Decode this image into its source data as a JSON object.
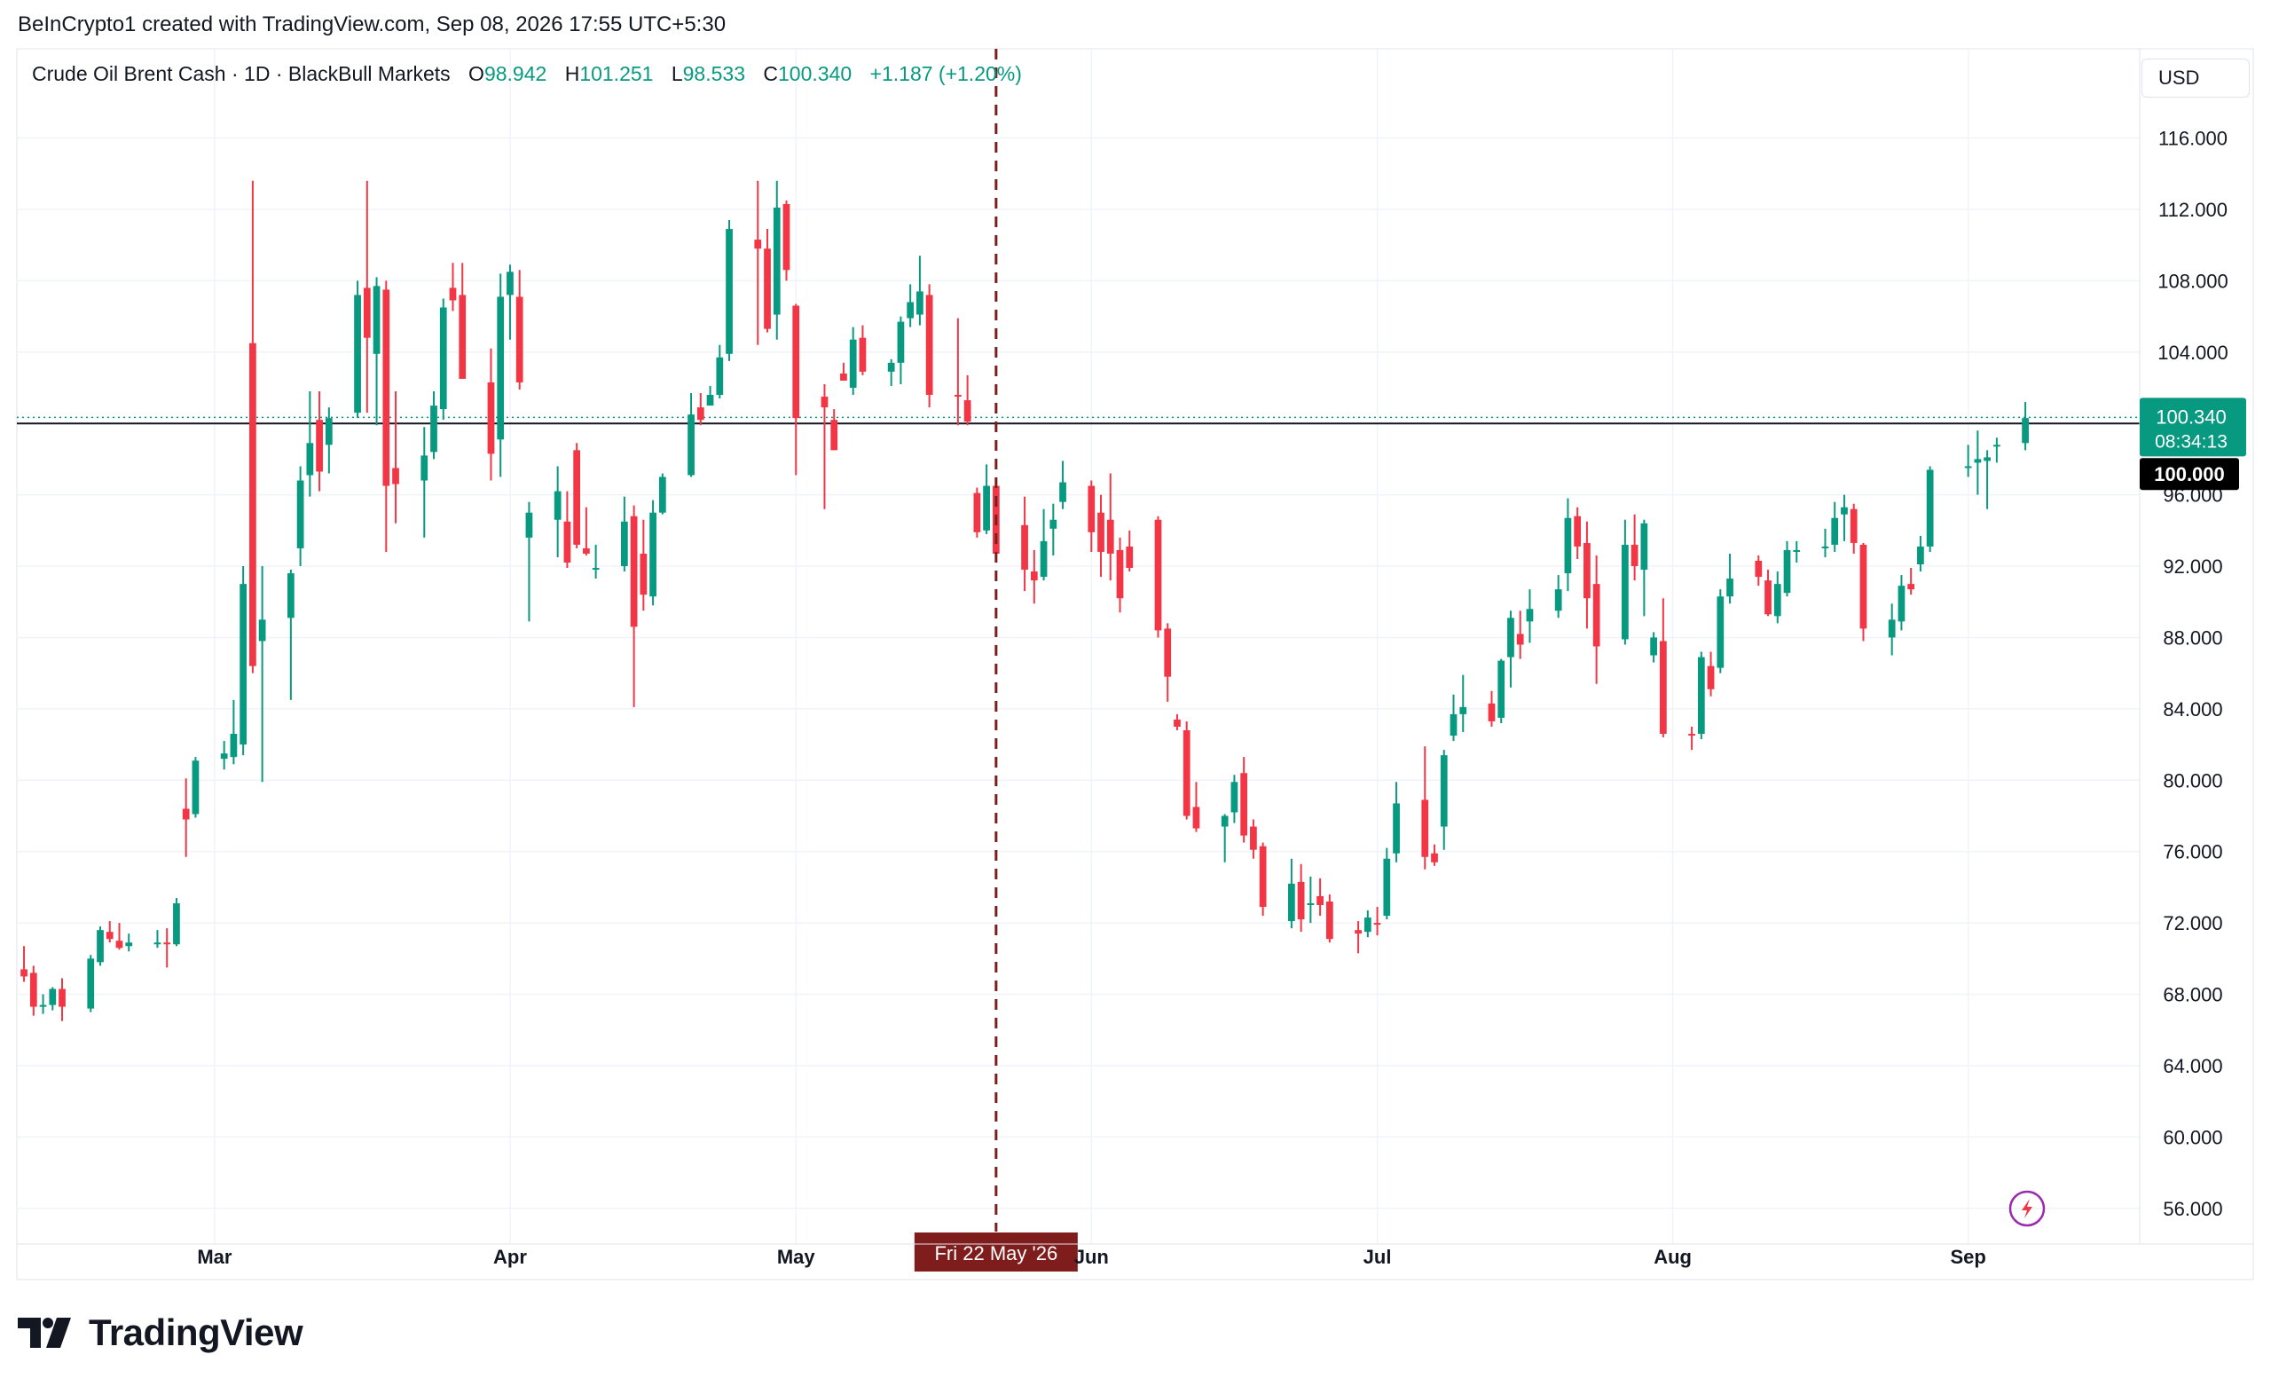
{
  "header": {
    "credit": "BeInCrypto1 created with TradingView.com, Sep 08, 2026 17:55 UTC+5:30"
  },
  "legend": {
    "symbol": "Crude Oil Brent Cash · 1D · BlackBull Markets",
    "o_label": "O",
    "o_value": "98.942",
    "h_label": "H",
    "h_value": "101.251",
    "l_label": "L",
    "l_value": "98.533",
    "c_label": "C",
    "c_value": "100.340",
    "change": "+1.187 (+1.20%)"
  },
  "toolbar": {
    "currency": "USD"
  },
  "brand": {
    "name": "TradingView",
    "logo_icon": "tradingview-logo-icon"
  },
  "icons": {
    "lightning": "lightning-icon"
  },
  "colors": {
    "up": "#089981",
    "down": "#f23645",
    "marker": "#7f1d1d",
    "price_label_bg": "#089981",
    "level_label_bg": "#000000",
    "grid": "#f0f3fa"
  },
  "chart_data": {
    "type": "candlestick",
    "title": "Crude Oil Brent Cash · 1D · BlackBull Markets",
    "ylim": [
      54,
      121
    ],
    "y_ticks": [
      "116.000",
      "112.000",
      "108.000",
      "104.000",
      "96.000",
      "92.000",
      "88.000",
      "84.000",
      "80.000",
      "76.000",
      "72.000",
      "68.000",
      "64.000",
      "60.000",
      "56.000"
    ],
    "y_tick_values": [
      116,
      112,
      108,
      104,
      96,
      92,
      88,
      84,
      80,
      76,
      72,
      68,
      64,
      60,
      56
    ],
    "x_ticks": [
      "Mar",
      "Apr",
      "May",
      "Jun",
      "Jul",
      "Aug",
      "Sep"
    ],
    "x_tick_dates": [
      "2026-03-01",
      "2026-04-01",
      "2026-05-01",
      "2026-06-01",
      "2026-07-01",
      "2026-08-01",
      "2026-09-01"
    ],
    "grid": true,
    "current_price": {
      "value": 100.34,
      "label": "100.340",
      "countdown": "08:34:13"
    },
    "horizontal_level": {
      "value": 100,
      "label": "100.000"
    },
    "vertical_marker": {
      "date": "2026-05-22",
      "label": "Fri 22 May '26"
    },
    "candles": [
      {
        "t": "2026-02-09",
        "o": 69.4,
        "h": 70.7,
        "l": 68.7,
        "c": 69.0
      },
      {
        "t": "2026-02-10",
        "o": 69.2,
        "h": 69.6,
        "l": 66.8,
        "c": 67.3
      },
      {
        "t": "2026-02-11",
        "o": 67.3,
        "h": 68.0,
        "l": 66.9,
        "c": 67.4
      },
      {
        "t": "2026-02-12",
        "o": 67.4,
        "h": 68.4,
        "l": 67.1,
        "c": 68.3
      },
      {
        "t": "2026-02-13",
        "o": 68.3,
        "h": 68.9,
        "l": 66.5,
        "c": 67.3
      },
      {
        "t": "2026-02-16",
        "o": 67.2,
        "h": 70.2,
        "l": 67.0,
        "c": 70.0
      },
      {
        "t": "2026-02-17",
        "o": 69.8,
        "h": 71.8,
        "l": 69.6,
        "c": 71.6
      },
      {
        "t": "2026-02-18",
        "o": 71.5,
        "h": 72.1,
        "l": 70.9,
        "c": 71.1
      },
      {
        "t": "2026-02-19",
        "o": 71.0,
        "h": 72.0,
        "l": 70.5,
        "c": 70.6
      },
      {
        "t": "2026-02-20",
        "o": 70.7,
        "h": 71.4,
        "l": 70.4,
        "c": 70.9
      },
      {
        "t": "2026-02-23",
        "o": 70.8,
        "h": 71.6,
        "l": 70.6,
        "c": 70.9
      },
      {
        "t": "2026-02-24",
        "o": 70.9,
        "h": 71.7,
        "l": 69.5,
        "c": 70.8
      },
      {
        "t": "2026-02-25",
        "o": 70.8,
        "h": 73.4,
        "l": 70.7,
        "c": 73.1
      },
      {
        "t": "2026-02-26",
        "o": 78.4,
        "h": 80.1,
        "l": 75.7,
        "c": 77.8
      },
      {
        "t": "2026-02-27",
        "o": 78.1,
        "h": 81.3,
        "l": 77.9,
        "c": 81.1
      },
      {
        "t": "2026-03-02",
        "o": 81.2,
        "h": 82.2,
        "l": 80.6,
        "c": 81.5
      },
      {
        "t": "2026-03-03",
        "o": 81.3,
        "h": 84.5,
        "l": 80.9,
        "c": 82.6
      },
      {
        "t": "2026-03-04",
        "o": 82.0,
        "h": 92.0,
        "l": 81.4,
        "c": 91.0
      },
      {
        "t": "2026-03-05",
        "o": 104.5,
        "h": 113.6,
        "l": 86.0,
        "c": 86.4
      },
      {
        "t": "2026-03-06",
        "o": 87.8,
        "h": 92.0,
        "l": 79.9,
        "c": 89.0
      },
      {
        "t": "2026-03-09",
        "o": 89.1,
        "h": 91.8,
        "l": 84.5,
        "c": 91.6
      },
      {
        "t": "2026-03-10",
        "o": 93.0,
        "h": 97.6,
        "l": 92.0,
        "c": 96.8
      },
      {
        "t": "2026-03-11",
        "o": 97.1,
        "h": 101.8,
        "l": 95.9,
        "c": 98.9
      },
      {
        "t": "2026-03-12",
        "o": 100.2,
        "h": 101.8,
        "l": 96.2,
        "c": 97.3
      },
      {
        "t": "2026-03-13",
        "o": 98.8,
        "h": 100.9,
        "l": 97.2,
        "c": 100.3
      },
      {
        "t": "2026-03-16",
        "o": 100.6,
        "h": 108.0,
        "l": 100.3,
        "c": 107.2
      },
      {
        "t": "2026-03-17",
        "o": 107.6,
        "h": 113.6,
        "l": 100.6,
        "c": 104.8
      },
      {
        "t": "2026-03-18",
        "o": 103.9,
        "h": 108.2,
        "l": 99.9,
        "c": 107.7
      },
      {
        "t": "2026-03-19",
        "o": 107.5,
        "h": 108.0,
        "l": 92.8,
        "c": 96.5
      },
      {
        "t": "2026-03-20",
        "o": 97.5,
        "h": 101.8,
        "l": 94.4,
        "c": 96.6
      },
      {
        "t": "2026-03-23",
        "o": 96.8,
        "h": 99.8,
        "l": 93.6,
        "c": 98.2
      },
      {
        "t": "2026-03-24",
        "o": 98.4,
        "h": 101.8,
        "l": 98.0,
        "c": 101.0
      },
      {
        "t": "2026-03-25",
        "o": 100.8,
        "h": 107.0,
        "l": 100.2,
        "c": 106.5
      },
      {
        "t": "2026-03-26",
        "o": 107.6,
        "h": 109.0,
        "l": 106.3,
        "c": 106.9
      },
      {
        "t": "2026-03-27",
        "o": 107.2,
        "h": 109.0,
        "l": 102.5,
        "c": 102.5
      },
      {
        "t": "2026-03-30",
        "o": 102.3,
        "h": 104.2,
        "l": 96.8,
        "c": 98.3
      },
      {
        "t": "2026-03-31",
        "o": 99.1,
        "h": 108.4,
        "l": 97.0,
        "c": 107.1
      },
      {
        "t": "2026-04-01",
        "o": 107.2,
        "h": 108.9,
        "l": 104.7,
        "c": 108.5
      },
      {
        "t": "2026-04-02",
        "o": 107.1,
        "h": 108.6,
        "l": 101.9,
        "c": 102.3
      },
      {
        "t": "2026-04-03",
        "o": 93.6,
        "h": 95.6,
        "l": 88.9,
        "c": 95.0
      },
      {
        "t": "2026-04-06",
        "o": 94.6,
        "h": 97.6,
        "l": 92.5,
        "c": 96.2
      },
      {
        "t": "2026-04-07",
        "o": 94.5,
        "h": 96.2,
        "l": 91.9,
        "c": 92.2
      },
      {
        "t": "2026-04-08",
        "o": 98.5,
        "h": 98.9,
        "l": 93.0,
        "c": 93.2
      },
      {
        "t": "2026-04-09",
        "o": 93.0,
        "h": 95.3,
        "l": 92.6,
        "c": 92.7
      },
      {
        "t": "2026-04-10",
        "o": 91.9,
        "h": 93.2,
        "l": 91.3,
        "c": 91.9
      },
      {
        "t": "2026-04-13",
        "o": 92.0,
        "h": 95.9,
        "l": 91.7,
        "c": 94.5
      },
      {
        "t": "2026-04-14",
        "o": 94.8,
        "h": 95.4,
        "l": 84.1,
        "c": 88.6
      },
      {
        "t": "2026-04-15",
        "o": 92.7,
        "h": 94.6,
        "l": 89.5,
        "c": 90.4
      },
      {
        "t": "2026-04-16",
        "o": 90.3,
        "h": 95.7,
        "l": 89.8,
        "c": 95.0
      },
      {
        "t": "2026-04-17",
        "o": 95.0,
        "h": 97.2,
        "l": 94.9,
        "c": 97.0
      },
      {
        "t": "2026-04-20",
        "o": 97.1,
        "h": 101.7,
        "l": 97.0,
        "c": 100.5
      },
      {
        "t": "2026-04-21",
        "o": 100.9,
        "h": 101.7,
        "l": 99.9,
        "c": 100.2
      },
      {
        "t": "2026-04-22",
        "o": 101.0,
        "h": 102.1,
        "l": 101.2,
        "c": 101.6
      },
      {
        "t": "2026-04-23",
        "o": 101.6,
        "h": 104.4,
        "l": 101.4,
        "c": 103.7
      },
      {
        "t": "2026-04-24",
        "o": 103.9,
        "h": 111.4,
        "l": 103.5,
        "c": 110.9
      },
      {
        "t": "2026-04-27",
        "o": 110.3,
        "h": 113.6,
        "l": 104.4,
        "c": 109.8
      },
      {
        "t": "2026-04-28",
        "o": 109.8,
        "h": 110.9,
        "l": 105.1,
        "c": 105.3
      },
      {
        "t": "2026-04-29",
        "o": 106.1,
        "h": 113.6,
        "l": 104.7,
        "c": 112.1
      },
      {
        "t": "2026-04-30",
        "o": 112.3,
        "h": 112.5,
        "l": 108.0,
        "c": 108.6
      },
      {
        "t": "2026-05-01",
        "o": 106.6,
        "h": 106.7,
        "l": 97.1,
        "c": 100.3
      },
      {
        "t": "2026-05-04",
        "o": 101.5,
        "h": 102.2,
        "l": 95.2,
        "c": 100.9
      },
      {
        "t": "2026-05-05",
        "o": 100.2,
        "h": 100.8,
        "l": 98.5,
        "c": 98.5
      },
      {
        "t": "2026-05-06",
        "o": 102.8,
        "h": 103.4,
        "l": 102.4,
        "c": 102.4
      },
      {
        "t": "2026-05-07",
        "o": 102.0,
        "h": 105.4,
        "l": 101.6,
        "c": 104.7
      },
      {
        "t": "2026-05-08",
        "o": 104.8,
        "h": 105.5,
        "l": 102.7,
        "c": 102.9
      },
      {
        "t": "2026-05-11",
        "o": 102.9,
        "h": 103.6,
        "l": 102.1,
        "c": 103.4
      },
      {
        "t": "2026-05-12",
        "o": 103.4,
        "h": 106.0,
        "l": 102.2,
        "c": 105.7
      },
      {
        "t": "2026-05-13",
        "o": 105.9,
        "h": 107.8,
        "l": 105.4,
        "c": 106.8
      },
      {
        "t": "2026-05-14",
        "o": 106.1,
        "h": 109.4,
        "l": 105.5,
        "c": 107.4
      },
      {
        "t": "2026-05-15",
        "o": 107.2,
        "h": 107.8,
        "l": 100.9,
        "c": 101.6
      },
      {
        "t": "2026-05-18",
        "o": 101.6,
        "h": 105.9,
        "l": 99.9,
        "c": 101.5
      },
      {
        "t": "2026-05-19",
        "o": 101.3,
        "h": 102.7,
        "l": 99.9,
        "c": 100.1
      },
      {
        "t": "2026-05-20",
        "o": 96.1,
        "h": 96.4,
        "l": 93.6,
        "c": 93.9
      },
      {
        "t": "2026-05-21",
        "o": 94.0,
        "h": 97.7,
        "l": 93.8,
        "c": 96.5
      },
      {
        "t": "2026-05-22",
        "o": 96.5,
        "h": 96.9,
        "l": 92.2,
        "c": 92.7
      },
      {
        "t": "2026-05-25",
        "o": 94.3,
        "h": 95.9,
        "l": 90.6,
        "c": 91.8
      },
      {
        "t": "2026-05-26",
        "o": 91.7,
        "h": 92.9,
        "l": 89.9,
        "c": 91.2
      },
      {
        "t": "2026-05-27",
        "o": 91.4,
        "h": 95.2,
        "l": 91.2,
        "c": 93.4
      },
      {
        "t": "2026-05-28",
        "o": 94.1,
        "h": 95.5,
        "l": 92.6,
        "c": 94.6
      },
      {
        "t": "2026-05-29",
        "o": 95.6,
        "h": 97.9,
        "l": 95.2,
        "c": 96.7
      },
      {
        "t": "2026-06-01",
        "o": 96.5,
        "h": 96.8,
        "l": 92.8,
        "c": 93.9
      },
      {
        "t": "2026-06-02",
        "o": 95.0,
        "h": 96.0,
        "l": 91.4,
        "c": 92.8
      },
      {
        "t": "2026-06-03",
        "o": 94.6,
        "h": 97.2,
        "l": 91.2,
        "c": 92.7
      },
      {
        "t": "2026-06-04",
        "o": 92.9,
        "h": 93.6,
        "l": 89.4,
        "c": 90.2
      },
      {
        "t": "2026-06-05",
        "o": 93.1,
        "h": 94.0,
        "l": 91.7,
        "c": 91.9
      },
      {
        "t": "2026-06-08",
        "o": 94.6,
        "h": 94.8,
        "l": 88.0,
        "c": 88.4
      },
      {
        "t": "2026-06-09",
        "o": 88.5,
        "h": 88.8,
        "l": 84.4,
        "c": 85.8
      },
      {
        "t": "2026-06-10",
        "o": 83.4,
        "h": 83.7,
        "l": 82.8,
        "c": 83.0
      },
      {
        "t": "2026-06-11",
        "o": 82.8,
        "h": 83.3,
        "l": 77.8,
        "c": 78.0
      },
      {
        "t": "2026-06-12",
        "o": 78.5,
        "h": 79.9,
        "l": 77.1,
        "c": 77.3
      },
      {
        "t": "2026-06-15",
        "o": 77.4,
        "h": 78.1,
        "l": 75.4,
        "c": 78.0
      },
      {
        "t": "2026-06-16",
        "o": 78.2,
        "h": 80.3,
        "l": 77.6,
        "c": 79.9
      },
      {
        "t": "2026-06-17",
        "o": 80.4,
        "h": 81.3,
        "l": 76.5,
        "c": 76.9
      },
      {
        "t": "2026-06-18",
        "o": 77.4,
        "h": 77.8,
        "l": 75.6,
        "c": 76.1
      },
      {
        "t": "2026-06-19",
        "o": 76.3,
        "h": 76.5,
        "l": 72.4,
        "c": 72.9
      },
      {
        "t": "2026-06-22",
        "o": 72.1,
        "h": 75.6,
        "l": 71.7,
        "c": 74.2
      },
      {
        "t": "2026-06-23",
        "o": 74.3,
        "h": 75.3,
        "l": 71.5,
        "c": 72.2
      },
      {
        "t": "2026-06-24",
        "o": 73.1,
        "h": 74.6,
        "l": 72.0,
        "c": 73.1
      },
      {
        "t": "2026-06-25",
        "o": 73.5,
        "h": 74.5,
        "l": 72.4,
        "c": 73.0
      },
      {
        "t": "2026-06-26",
        "o": 73.2,
        "h": 73.6,
        "l": 70.9,
        "c": 71.1
      },
      {
        "t": "2026-06-29",
        "o": 71.6,
        "h": 72.1,
        "l": 70.3,
        "c": 71.4
      },
      {
        "t": "2026-06-30",
        "o": 71.5,
        "h": 72.7,
        "l": 71.2,
        "c": 72.3
      },
      {
        "t": "2026-07-01",
        "o": 72.0,
        "h": 72.9,
        "l": 71.3,
        "c": 71.9
      },
      {
        "t": "2026-07-02",
        "o": 72.4,
        "h": 76.2,
        "l": 72.2,
        "c": 75.6
      },
      {
        "t": "2026-07-03",
        "o": 75.9,
        "h": 79.9,
        "l": 75.4,
        "c": 78.7
      },
      {
        "t": "2026-07-06",
        "o": 78.9,
        "h": 81.9,
        "l": 75.0,
        "c": 75.7
      },
      {
        "t": "2026-07-07",
        "o": 75.9,
        "h": 76.4,
        "l": 75.2,
        "c": 75.4
      },
      {
        "t": "2026-07-08",
        "o": 77.4,
        "h": 81.7,
        "l": 76.1,
        "c": 81.4
      },
      {
        "t": "2026-07-09",
        "o": 82.5,
        "h": 84.8,
        "l": 82.2,
        "c": 83.7
      },
      {
        "t": "2026-07-10",
        "o": 83.7,
        "h": 85.9,
        "l": 82.7,
        "c": 84.1
      },
      {
        "t": "2026-07-13",
        "o": 84.3,
        "h": 85.0,
        "l": 83.0,
        "c": 83.3
      },
      {
        "t": "2026-07-14",
        "o": 83.5,
        "h": 86.8,
        "l": 83.2,
        "c": 86.7
      },
      {
        "t": "2026-07-15",
        "o": 86.9,
        "h": 89.5,
        "l": 85.2,
        "c": 89.1
      },
      {
        "t": "2026-07-16",
        "o": 88.2,
        "h": 89.5,
        "l": 86.8,
        "c": 87.6
      },
      {
        "t": "2026-07-17",
        "o": 88.9,
        "h": 90.7,
        "l": 87.7,
        "c": 89.6
      },
      {
        "t": "2026-07-20",
        "o": 89.5,
        "h": 91.5,
        "l": 89.1,
        "c": 90.7
      },
      {
        "t": "2026-07-21",
        "o": 91.6,
        "h": 95.8,
        "l": 90.6,
        "c": 94.7
      },
      {
        "t": "2026-07-22",
        "o": 94.8,
        "h": 95.3,
        "l": 92.4,
        "c": 93.1
      },
      {
        "t": "2026-07-23",
        "o": 93.3,
        "h": 94.5,
        "l": 88.5,
        "c": 90.2
      },
      {
        "t": "2026-07-24",
        "o": 91.0,
        "h": 92.6,
        "l": 85.4,
        "c": 87.5
      },
      {
        "t": "2026-07-27",
        "o": 87.9,
        "h": 94.6,
        "l": 87.6,
        "c": 93.2
      },
      {
        "t": "2026-07-28",
        "o": 93.2,
        "h": 94.9,
        "l": 91.2,
        "c": 92.0
      },
      {
        "t": "2026-07-29",
        "o": 91.8,
        "h": 94.6,
        "l": 89.2,
        "c": 94.4
      },
      {
        "t": "2026-07-30",
        "o": 87.0,
        "h": 88.3,
        "l": 86.6,
        "c": 88.0
      },
      {
        "t": "2026-07-31",
        "o": 87.8,
        "h": 90.2,
        "l": 82.4,
        "c": 82.6
      },
      {
        "t": "2026-08-03",
        "o": 82.6,
        "h": 83.0,
        "l": 81.7,
        "c": 82.5
      },
      {
        "t": "2026-08-04",
        "o": 82.6,
        "h": 87.2,
        "l": 82.3,
        "c": 86.9
      },
      {
        "t": "2026-08-05",
        "o": 86.4,
        "h": 87.2,
        "l": 84.7,
        "c": 85.1
      },
      {
        "t": "2026-08-06",
        "o": 86.3,
        "h": 90.7,
        "l": 86.0,
        "c": 90.3
      },
      {
        "t": "2026-08-07",
        "o": 90.3,
        "h": 92.7,
        "l": 89.9,
        "c": 91.3
      },
      {
        "t": "2026-08-10",
        "o": 92.3,
        "h": 92.6,
        "l": 90.9,
        "c": 91.4
      },
      {
        "t": "2026-08-11",
        "o": 91.2,
        "h": 91.8,
        "l": 89.2,
        "c": 89.3
      },
      {
        "t": "2026-08-12",
        "o": 89.2,
        "h": 91.7,
        "l": 88.8,
        "c": 91.0
      },
      {
        "t": "2026-08-13",
        "o": 90.5,
        "h": 93.4,
        "l": 90.3,
        "c": 92.9
      },
      {
        "t": "2026-08-14",
        "o": 92.8,
        "h": 93.4,
        "l": 92.2,
        "c": 92.9
      },
      {
        "t": "2026-08-17",
        "o": 93.0,
        "h": 94.1,
        "l": 92.5,
        "c": 93.1
      },
      {
        "t": "2026-08-18",
        "o": 93.2,
        "h": 95.6,
        "l": 92.8,
        "c": 94.7
      },
      {
        "t": "2026-08-19",
        "o": 94.9,
        "h": 96.0,
        "l": 93.4,
        "c": 95.3
      },
      {
        "t": "2026-08-20",
        "o": 95.2,
        "h": 95.5,
        "l": 92.7,
        "c": 93.3
      },
      {
        "t": "2026-08-21",
        "o": 93.2,
        "h": 93.3,
        "l": 87.8,
        "c": 88.5
      },
      {
        "t": "2026-08-24",
        "o": 88.0,
        "h": 89.9,
        "l": 87.0,
        "c": 89.0
      },
      {
        "t": "2026-08-25",
        "o": 88.9,
        "h": 91.5,
        "l": 88.4,
        "c": 90.9
      },
      {
        "t": "2026-08-26",
        "o": 91.0,
        "h": 91.9,
        "l": 90.4,
        "c": 90.7
      },
      {
        "t": "2026-08-27",
        "o": 92.1,
        "h": 93.7,
        "l": 91.7,
        "c": 93.1
      },
      {
        "t": "2026-08-28",
        "o": 93.1,
        "h": 97.6,
        "l": 92.8,
        "c": 97.4
      },
      {
        "t": "2026-09-01",
        "o": 97.5,
        "h": 98.8,
        "l": 97.0,
        "c": 97.6
      },
      {
        "t": "2026-09-02",
        "o": 97.8,
        "h": 99.6,
        "l": 96.0,
        "c": 98.0
      },
      {
        "t": "2026-09-03",
        "o": 97.9,
        "h": 98.5,
        "l": 95.2,
        "c": 98.1
      },
      {
        "t": "2026-09-04",
        "o": 98.7,
        "h": 99.2,
        "l": 97.8,
        "c": 98.8
      },
      {
        "t": "2026-09-07",
        "o": 98.9,
        "h": 101.2,
        "l": 98.5,
        "c": 100.3
      }
    ]
  }
}
